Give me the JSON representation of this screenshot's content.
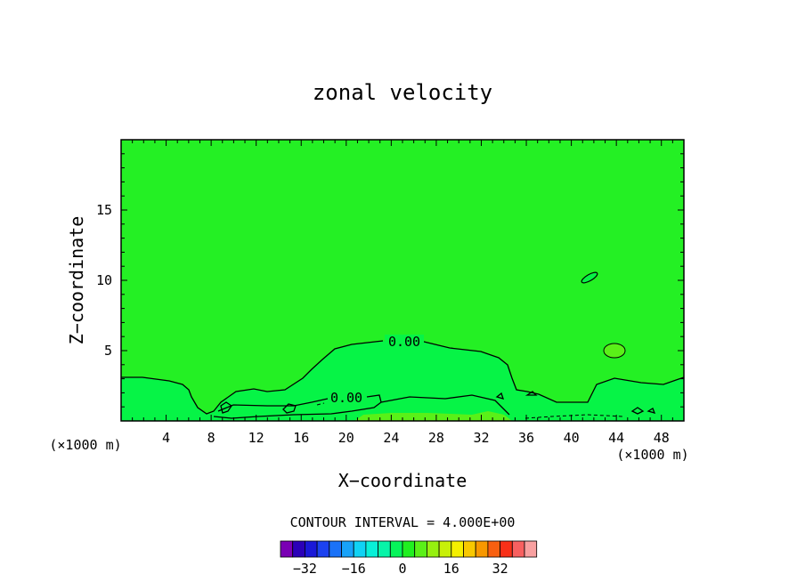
{
  "chart_data": {
    "type": "contour",
    "title": "zonal velocity",
    "xlabel": "X−coordinate",
    "ylabel": "Z−coordinate",
    "x_unit_left": "(×1000 m)",
    "x_unit_right": "(×1000 m)",
    "xlim": [
      0,
      50
    ],
    "ylim": [
      0,
      20
    ],
    "x_ticks": [
      4,
      8,
      12,
      16,
      20,
      24,
      28,
      32,
      36,
      40,
      44,
      48
    ],
    "y_ticks": [
      5,
      10,
      15
    ],
    "background_level": 0,
    "contour_labels": [
      {
        "text": "0.00",
        "x": 25.3,
        "y": 5.5
      },
      {
        "text": "0.00",
        "x": 20.0,
        "y": 1.6
      }
    ],
    "contour_interval_text": "CONTOUR INTERVAL = 4.000E+00",
    "colorbar": {
      "levels": [
        -36,
        -32,
        -28,
        -24,
        -20,
        -16,
        -12,
        -8,
        -4,
        0,
        4,
        8,
        12,
        16,
        20,
        24,
        28,
        32,
        36
      ],
      "colors": [
        "#7a00b4",
        "#2b00b8",
        "#1a18d8",
        "#1c42f0",
        "#1a72f8",
        "#18a2f8",
        "#10d2f4",
        "#08f0d8",
        "#08f4a8",
        "#06f45a",
        "#20f020",
        "#5af018",
        "#96f010",
        "#c8f008",
        "#f4f000",
        "#f8c800",
        "#f89800",
        "#f86010",
        "#f83018",
        "#f86060",
        "#f8a0a0"
      ],
      "tick_labels": [
        "−32",
        "−16",
        "0",
        "16",
        "32"
      ],
      "tick_values": [
        -32,
        -16,
        0,
        16,
        32
      ]
    }
  }
}
